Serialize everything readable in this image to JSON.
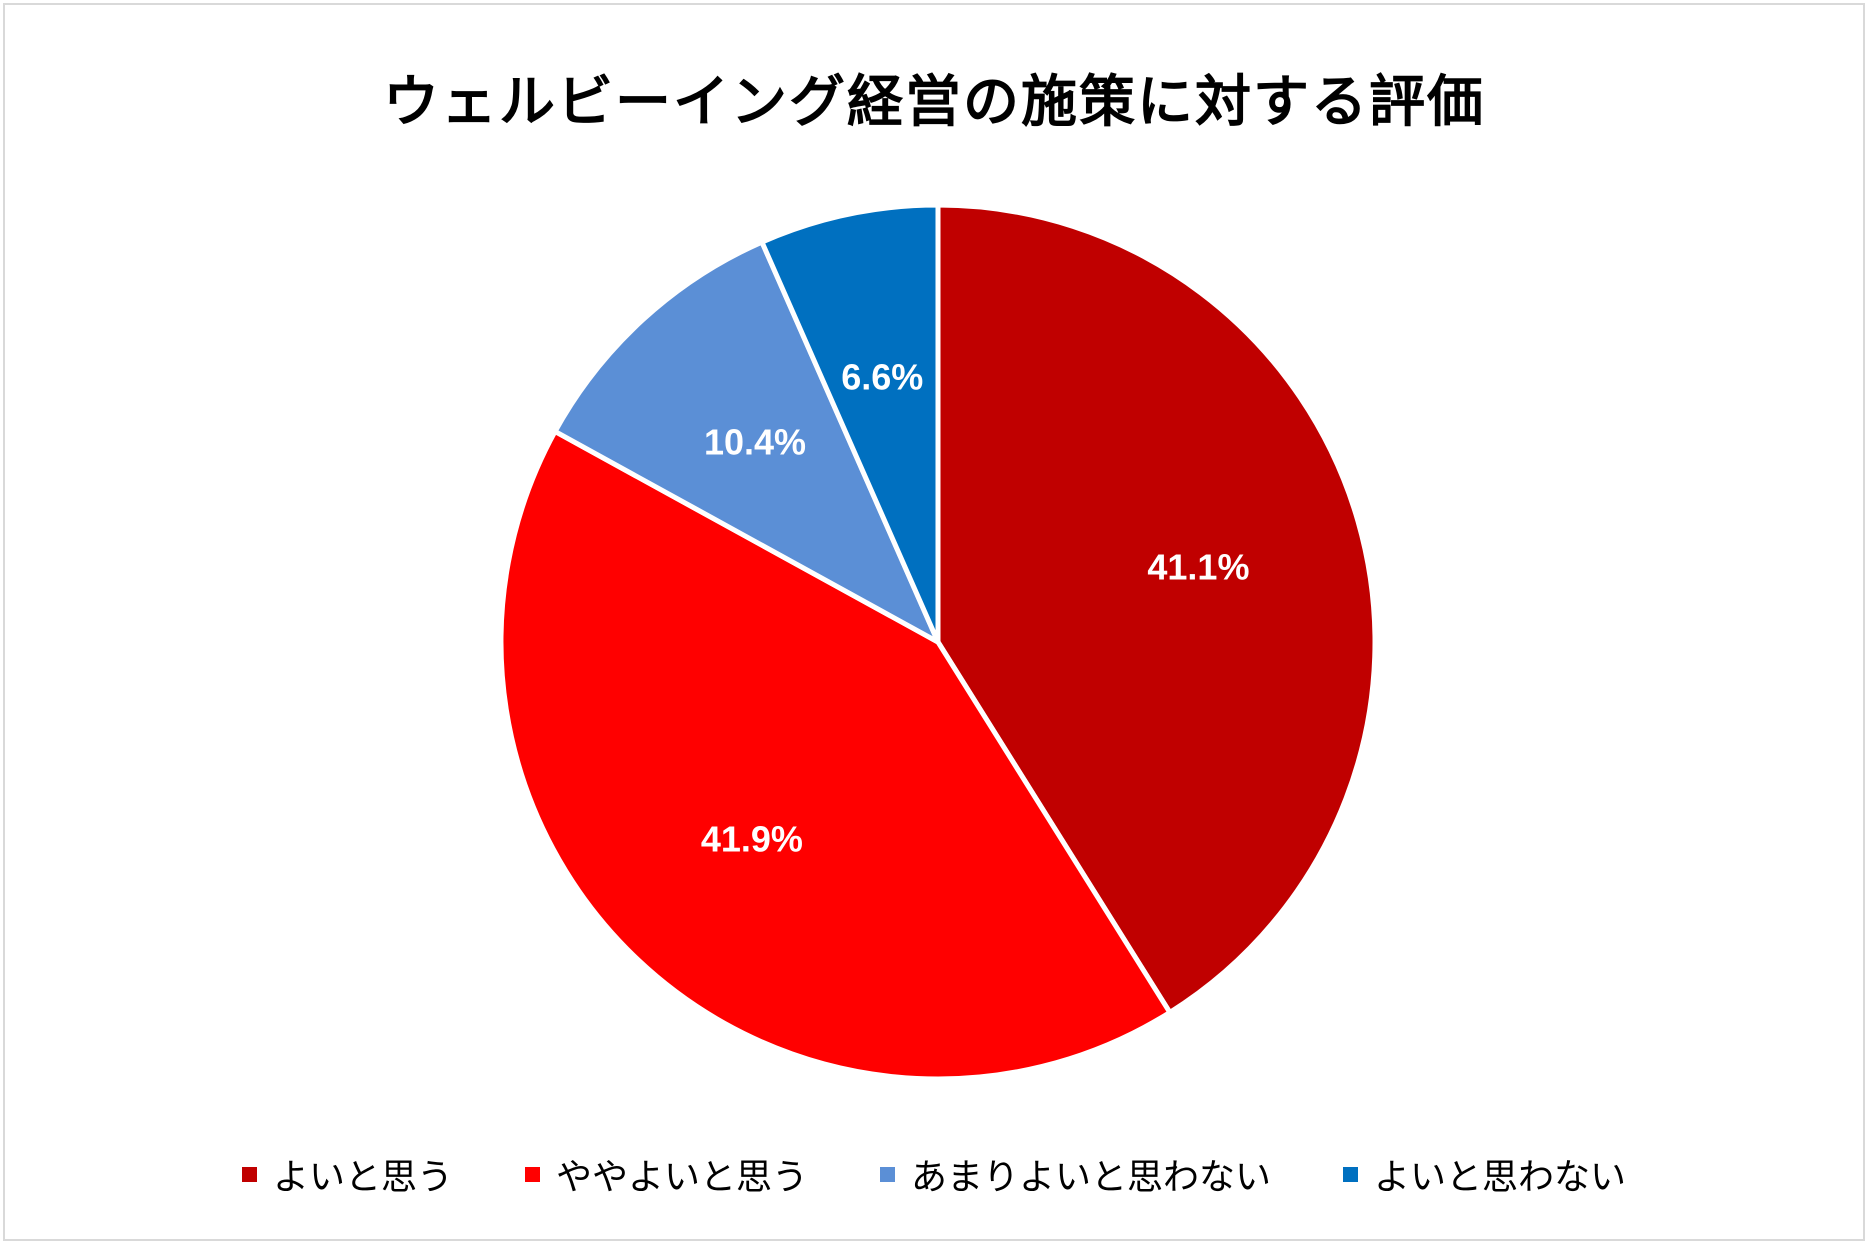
{
  "chart_data": {
    "type": "pie",
    "title": "ウェルビーイング経営の施策に対する評価",
    "categories": [
      "よいと思う",
      "ややよいと思う",
      "あまりよいと思わない",
      "よいと思わない"
    ],
    "values": [
      41.1,
      41.9,
      10.4,
      6.6
    ],
    "value_labels": [
      "41.1%",
      "41.9%",
      "10.4%",
      "6.6%"
    ],
    "colors": [
      "#C00000",
      "#FF0000",
      "#5B8FD6",
      "#0070C0"
    ],
    "start_angle": "12 o'clock",
    "direction": "clockwise",
    "legend_position": "bottom"
  }
}
